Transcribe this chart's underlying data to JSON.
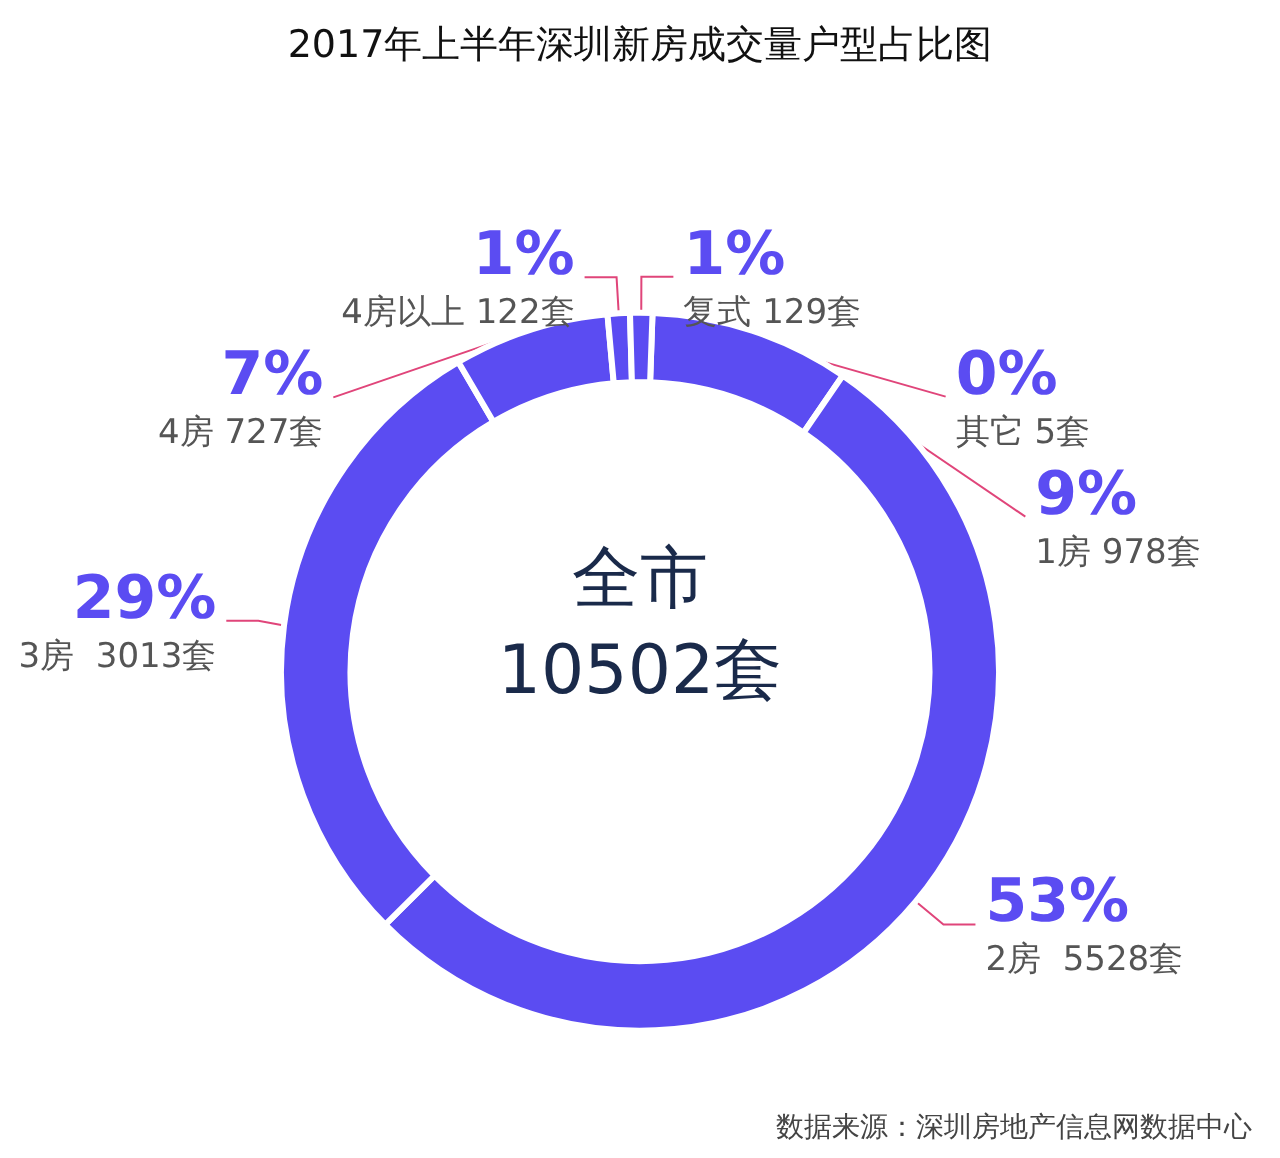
{
  "chart_data": {
    "type": "donut",
    "title": "2017年上半年深圳新房成交量户型占比图",
    "categories": [
      "1房 978套",
      "2房  5528套",
      "3房  3013套",
      "4房 727套",
      "4房以上 122套",
      "复式 129套",
      "其它 5套"
    ],
    "values": [
      9,
      53,
      29,
      7,
      1,
      1,
      0
    ],
    "value_labels": [
      "9%",
      "53%",
      "29%",
      "7%",
      "1%",
      "1%",
      "0%"
    ],
    "colors": [
      "#5b4cf2",
      "#5b4cf2",
      "#5b4cf2",
      "#5b4cf2",
      "#5b4cf2",
      "#5b4cf2",
      "#5b4cf2"
    ],
    "annotations": [
      "全市\n10502套",
      "数据来源：深圳房地产信息网数据中心"
    ],
    "legend": false
  }
}
